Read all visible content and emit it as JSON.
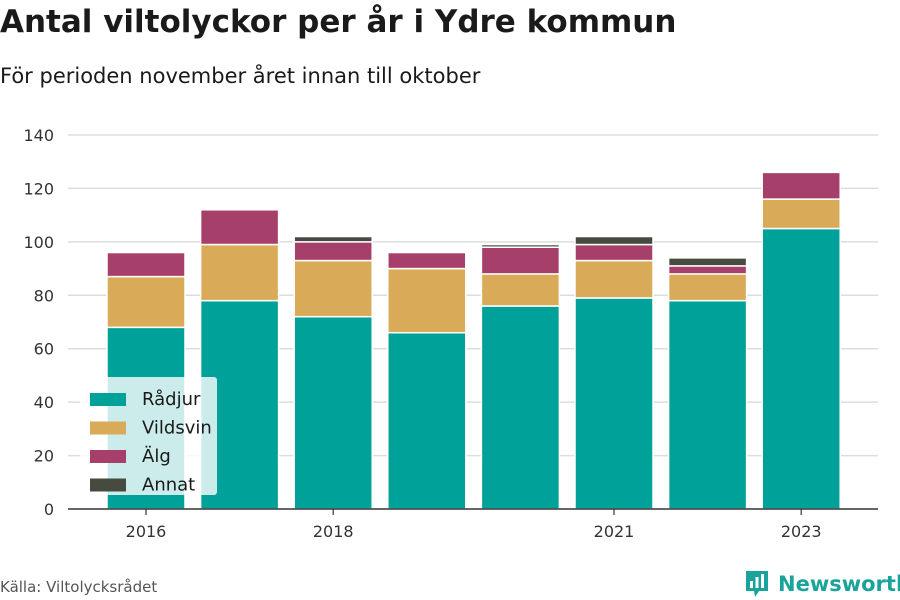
{
  "title": "Antal viltolyckor per år i Ydre kommun",
  "subtitle": "För perioden november året innan till oktober",
  "source": "Källa: Viltolycksrådet",
  "brand": {
    "name": "Newsworthy",
    "icon": "bar-chart-logo-icon",
    "color": "#1aa39a"
  },
  "chart_data": {
    "type": "bar",
    "stacked": true,
    "categories": [
      "2016",
      "2017",
      "2018",
      "2019",
      "2020",
      "2021",
      "2022",
      "2023"
    ],
    "x_tick_labels": [
      "2016",
      "",
      "2018",
      "",
      "",
      "2021",
      "",
      "2023"
    ],
    "series": [
      {
        "name": "Rådjur",
        "color": "#00a199",
        "values": [
          68,
          78,
          72,
          66,
          76,
          79,
          78,
          105
        ]
      },
      {
        "name": "Vildsvin",
        "color": "#d9ab59",
        "values": [
          19,
          21,
          21,
          24,
          12,
          14,
          10,
          11
        ]
      },
      {
        "name": "Älg",
        "color": "#a63f69",
        "values": [
          9,
          13,
          7,
          6,
          10,
          6,
          3,
          10
        ]
      },
      {
        "name": "Annat",
        "color": "#474b3f",
        "values": [
          0,
          0,
          2,
          0,
          1,
          3,
          3,
          0
        ]
      }
    ],
    "ylim": [
      0,
      140
    ],
    "yticks": [
      0,
      20,
      40,
      60,
      80,
      100,
      120,
      140
    ],
    "grid": true,
    "legend_position": "bottom-left"
  }
}
